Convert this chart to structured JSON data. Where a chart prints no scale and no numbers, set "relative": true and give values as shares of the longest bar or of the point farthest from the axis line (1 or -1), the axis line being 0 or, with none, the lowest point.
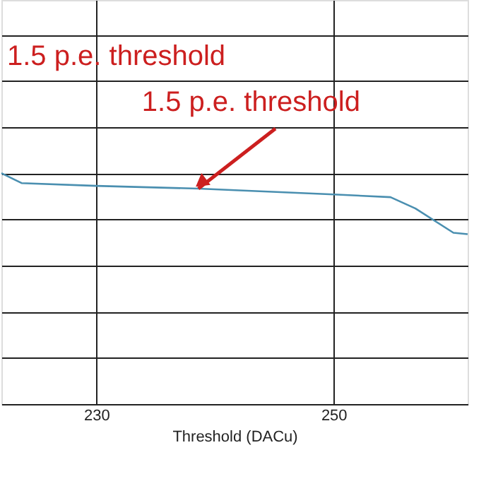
{
  "chart_data": {
    "type": "line",
    "relative": true,
    "xlabel": "Threshold (DACu)",
    "x": [
      222,
      223.7,
      230,
      238.6,
      250,
      254.8,
      256.9,
      260.1,
      261.3
    ],
    "series": [
      {
        "color": "#4a8fb0",
        "values": [
          1,
          0.957,
          0.945,
          0.933,
          0.908,
          0.896,
          0.847,
          0.742,
          0.736
        ]
      }
    ],
    "xlim": [
      222,
      261.3
    ],
    "xticks": [
      230,
      250
    ],
    "grid": true,
    "annotations": [
      "1.5 p.e. threshold",
      {
        "text": "1.5 p.e. threshold",
        "x": 238.6,
        "y": 0.933
      }
    ]
  }
}
